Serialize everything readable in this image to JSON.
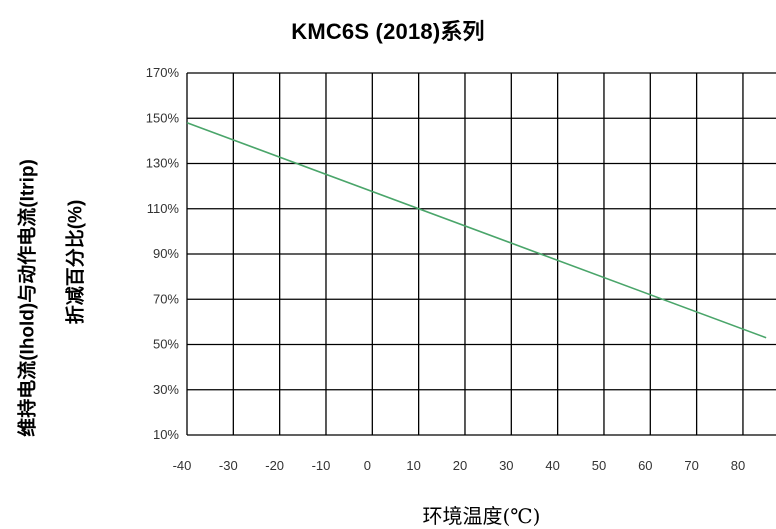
{
  "chart_data": {
    "type": "line",
    "title": "KMC6S (2018)系列",
    "ylabel_line1": "维持电流(Ihold)与动作电流(Itrip)",
    "ylabel_line2": "折减百分比(%)",
    "xlabel": "环境温度(℃)",
    "x_ticks": [
      -40,
      -30,
      -20,
      -10,
      0,
      10,
      20,
      30,
      40,
      50,
      60,
      70,
      80
    ],
    "y_ticks": [
      "10%",
      "30%",
      "50%",
      "70%",
      "90%",
      "110%",
      "130%",
      "150%",
      "170%"
    ],
    "xlim": [
      -40,
      85
    ],
    "ylim": [
      10,
      170
    ],
    "grid": true,
    "series": [
      {
        "x": [
          -40,
          85
        ],
        "y": [
          148,
          53
        ],
        "color": "#4aa56a"
      }
    ],
    "colors": {
      "grid": "#000000",
      "series": "#4aa56a"
    }
  }
}
